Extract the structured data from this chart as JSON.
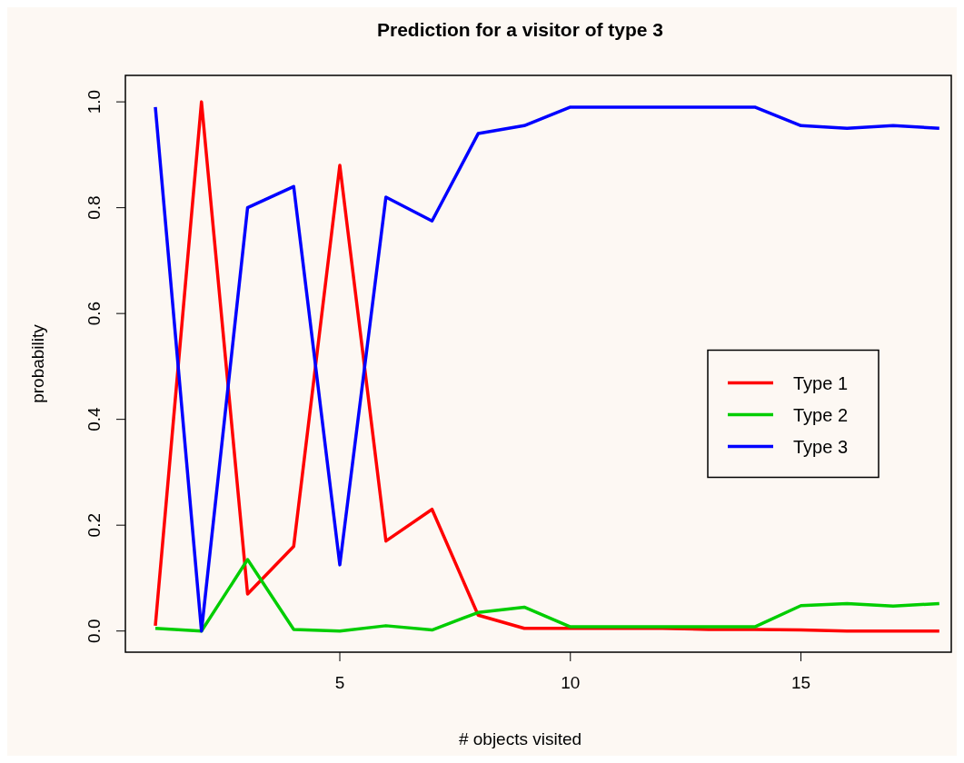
{
  "chart_data": {
    "type": "line",
    "title": "Prediction for a visitor of type 3",
    "xlabel": "# objects visited",
    "ylabel": "probability",
    "x": [
      1,
      2,
      3,
      4,
      5,
      6,
      7,
      8,
      9,
      10,
      11,
      12,
      13,
      14,
      15,
      16,
      17,
      18
    ],
    "series": [
      {
        "name": "Type 1",
        "color": "#ff0000",
        "values": [
          0.01,
          1.0,
          0.07,
          0.16,
          0.88,
          0.17,
          0.23,
          0.03,
          0.005,
          0.005,
          0.005,
          0.005,
          0.003,
          0.003,
          0.002,
          0,
          0,
          0
        ]
      },
      {
        "name": "Type 2",
        "color": "#00cd00",
        "values": [
          0.005,
          0,
          0.135,
          0.003,
          0,
          0.01,
          0.002,
          0.035,
          0.045,
          0.008,
          0.008,
          0.008,
          0.008,
          0.008,
          0.048,
          0.052,
          0.047,
          0.052
        ]
      },
      {
        "name": "Type 3",
        "color": "#0000ff",
        "values": [
          0.99,
          0,
          0.8,
          0.84,
          0.125,
          0.82,
          0.775,
          0.94,
          0.955,
          0.99,
          0.99,
          0.99,
          0.99,
          0.99,
          0.955,
          0.95,
          0.955,
          0.95
        ]
      }
    ],
    "xlim": [
      0.35,
      18.26
    ],
    "ylim": [
      -0.04,
      1.05
    ],
    "xticks": [
      5,
      10,
      15
    ],
    "yticks": [
      {
        "value": 0,
        "label": "0.0"
      },
      0.2,
      0.4,
      0.6,
      0.8,
      {
        "value": 1,
        "label": "1.0"
      }
    ],
    "grid": false,
    "legend": "right",
    "marker": "none",
    "line_style": "solid"
  }
}
